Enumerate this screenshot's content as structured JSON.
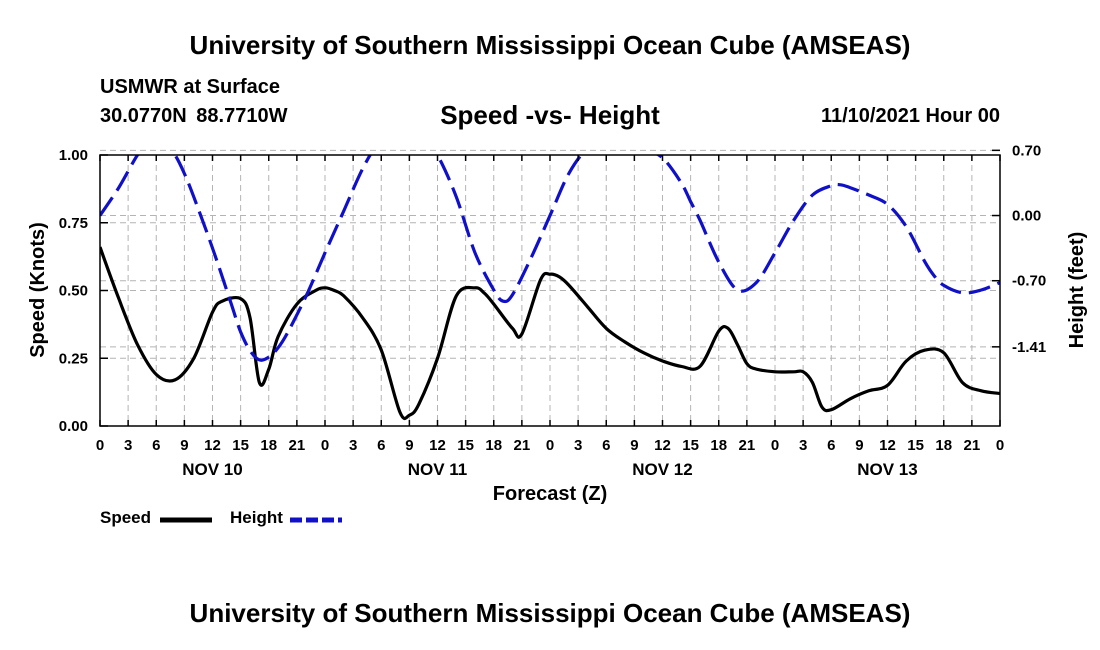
{
  "header": {
    "title": "University of Southern Mississippi Ocean Cube (AMSEAS)",
    "station": "USMWR at Surface",
    "coordinates": "30.0770N  88.7710W",
    "date_hour": "11/10/2021 Hour 00"
  },
  "footer": {
    "title": "University of Southern Mississippi Ocean Cube (AMSEAS)"
  },
  "colors": {
    "speed": "#000000",
    "height": "#1010c8",
    "grid": "#b4b4b4"
  },
  "chart_data": {
    "type": "line",
    "title": "Speed -vs- Height",
    "xlabel": "Forecast (Z)",
    "ylabel": "Speed (Knots)",
    "y2label": "Height (feet)",
    "xlim": [
      0,
      96
    ],
    "ylim": [
      0,
      1
    ],
    "y2lim": [
      -2.26,
      0.65
    ],
    "x_ticks": [
      0,
      3,
      6,
      9,
      12,
      15,
      18,
      21,
      24,
      27,
      30,
      33,
      36,
      39,
      42,
      45,
      48,
      51,
      54,
      57,
      60,
      63,
      66,
      69,
      72,
      75,
      78,
      81,
      84,
      87,
      90,
      93,
      96
    ],
    "x_tick_labels": [
      "0",
      "3",
      "6",
      "9",
      "12",
      "15",
      "18",
      "21",
      "0",
      "3",
      "6",
      "9",
      "12",
      "15",
      "18",
      "21",
      "0",
      "3",
      "6",
      "9",
      "12",
      "15",
      "18",
      "21",
      "0",
      "3",
      "6",
      "9",
      "12",
      "15",
      "18",
      "21",
      "0"
    ],
    "day_labels": [
      {
        "x": 12,
        "label": "NOV 10"
      },
      {
        "x": 36,
        "label": "NOV 11"
      },
      {
        "x": 60,
        "label": "NOV 12"
      },
      {
        "x": 84,
        "label": "NOV 13"
      }
    ],
    "y_ticks": [
      0,
      0.25,
      0.5,
      0.75,
      1.0
    ],
    "y_tick_labels": [
      "0.00",
      "0.25",
      "0.50",
      "0.75",
      "1.00"
    ],
    "y2_ticks": [
      -1.41,
      -0.7,
      0.0,
      0.7
    ],
    "y2_tick_labels": [
      "-1.41",
      "-0.70",
      "0.00",
      "0.70"
    ],
    "legend_placement": "bottom-left",
    "series": [
      {
        "name": "Speed",
        "axis": "left",
        "style": "solid",
        "x": [
          0,
          2,
          4,
          6,
          8,
          10,
          12,
          13,
          15,
          16,
          17,
          18,
          19,
          21,
          23,
          24,
          25,
          26,
          28,
          30,
          32,
          33,
          34,
          36,
          38,
          40,
          41,
          42,
          44,
          45,
          47,
          48,
          49,
          50,
          52,
          54,
          56,
          58,
          60,
          62,
          64,
          66,
          67,
          68,
          69,
          70,
          72,
          74,
          75,
          76,
          77,
          78,
          80,
          82,
          84,
          86,
          88,
          90,
          92,
          94,
          96
        ],
        "y": [
          0.66,
          0.47,
          0.3,
          0.19,
          0.17,
          0.25,
          0.42,
          0.46,
          0.47,
          0.4,
          0.16,
          0.21,
          0.33,
          0.45,
          0.5,
          0.51,
          0.5,
          0.48,
          0.4,
          0.28,
          0.05,
          0.04,
          0.08,
          0.25,
          0.48,
          0.51,
          0.49,
          0.45,
          0.36,
          0.34,
          0.54,
          0.56,
          0.55,
          0.52,
          0.44,
          0.36,
          0.31,
          0.27,
          0.24,
          0.22,
          0.22,
          0.35,
          0.36,
          0.3,
          0.23,
          0.21,
          0.2,
          0.2,
          0.2,
          0.16,
          0.07,
          0.06,
          0.1,
          0.13,
          0.15,
          0.24,
          0.28,
          0.27,
          0.16,
          0.13,
          0.12
        ]
      },
      {
        "name": "Height",
        "axis": "right",
        "style": "dashed",
        "x": [
          0,
          2,
          4,
          5,
          6,
          7,
          8,
          9,
          10,
          12,
          14,
          15,
          16,
          17,
          18,
          19,
          20,
          22,
          24,
          26,
          28,
          30,
          31,
          32,
          33,
          34,
          36,
          38,
          40,
          42,
          43,
          44,
          46,
          48,
          50,
          52,
          54,
          56,
          58,
          60,
          62,
          63,
          64,
          66,
          68,
          70,
          72,
          74,
          76,
          78,
          79,
          80,
          82,
          84,
          86,
          88,
          89,
          90,
          92,
          94,
          96
        ],
        "y": [
          0.0,
          0.3,
          0.65,
          0.75,
          0.79,
          0.75,
          0.65,
          0.45,
          0.2,
          -0.35,
          -0.95,
          -1.25,
          -1.45,
          -1.55,
          -1.52,
          -1.42,
          -1.26,
          -0.86,
          -0.4,
          0.05,
          0.5,
          0.85,
          0.98,
          1.05,
          1.05,
          0.95,
          0.65,
          0.2,
          -0.4,
          -0.8,
          -0.92,
          -0.85,
          -0.45,
          0.0,
          0.45,
          0.72,
          0.8,
          0.78,
          0.72,
          0.62,
          0.35,
          0.15,
          -0.05,
          -0.5,
          -0.8,
          -0.72,
          -0.4,
          -0.05,
          0.22,
          0.32,
          0.33,
          0.3,
          0.22,
          0.12,
          -0.12,
          -0.5,
          -0.65,
          -0.75,
          -0.83,
          -0.8,
          -0.72
        ]
      }
    ]
  }
}
